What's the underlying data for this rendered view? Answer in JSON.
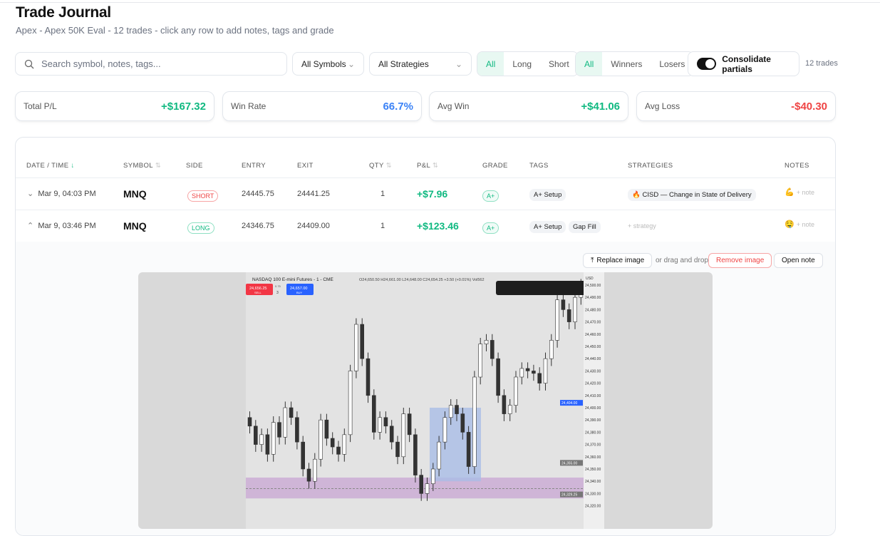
{
  "header": {
    "title": "Trade Journal",
    "subtitle": "Apex - Apex 50K Eval - 12 trades - click any row to add notes, tags and grade"
  },
  "filters": {
    "search_placeholder": "Search symbol, notes, tags...",
    "symbols": "All Symbols",
    "strategies": "All Strategies",
    "side": [
      "All",
      "Long",
      "Short"
    ],
    "side_selected": "All",
    "result": [
      "All",
      "Winners",
      "Losers"
    ],
    "result_selected": "All",
    "consolidate_label": "Consolidate partials",
    "consolidate_on": true,
    "count": "12 trades"
  },
  "stats": [
    {
      "label": "Total P/L",
      "value": "+$167.32",
      "color": "#10b981"
    },
    {
      "label": "Win Rate",
      "value": "66.7%",
      "color": "#3b82f6"
    },
    {
      "label": "Avg Win",
      "value": "+$41.06",
      "color": "#10b981"
    },
    {
      "label": "Avg Loss",
      "value": "-$40.30",
      "color": "#ef4444"
    }
  ],
  "table": {
    "columns": [
      "DATE / TIME",
      "SYMBOL",
      "SIDE",
      "ENTRY",
      "EXIT",
      "QTY",
      "P&L",
      "GRADE",
      "TAGS",
      "STRATEGIES",
      "NOTES"
    ],
    "rows": [
      {
        "date": "Mar 9, 04:03 PM",
        "symbol": "MNQ",
        "side": "SHORT",
        "entry": "24445.75",
        "exit": "24441.25",
        "qty": "1",
        "pl": "+$7.96",
        "grade": "A+",
        "tags": [
          "A+ Setup"
        ],
        "strategy": "CISD — Change in State of Delivery",
        "note_emoji": "💪",
        "note": "+ note",
        "expanded": false
      },
      {
        "date": "Mar 9, 03:46 PM",
        "symbol": "MNQ",
        "side": "LONG",
        "entry": "24346.75",
        "exit": "24409.00",
        "qty": "1",
        "pl": "+$123.46",
        "grade": "A+",
        "tags": [
          "A+ Setup",
          "Gap Fill"
        ],
        "strategy": "+ strategy",
        "note_emoji": "🤤",
        "note": "+ note",
        "expanded": true
      }
    ]
  },
  "expanded": {
    "replace": "Replace image",
    "drag": "or drag and drop",
    "remove": "Remove image",
    "open": "Open note"
  },
  "chart": {
    "title": "NASDAQ 100 E-mini Futures - 1 - CME",
    "ohlc": "O24,650.50 H24,661.00 L24,648.00 C24,654.25 +3.50 (+0.01%) Vol562",
    "sell": "24,656.25",
    "sell_label": "SELL",
    "spread": "0.75",
    "qty": "3",
    "buy": "24,657.00",
    "buy_label": "BUY",
    "currency": "USD",
    "price_ticks": [
      "24,500.00",
      "24,490.00",
      "24,480.00",
      "24,470.00",
      "24,460.00",
      "24,450.00",
      "24,440.00",
      "24,430.00",
      "24,420.00",
      "24,410.00",
      "24,400.00",
      "24,390.00",
      "24,380.00",
      "24,370.00",
      "24,360.00",
      "24,350.00",
      "24,340.00",
      "24,330.00",
      "24,320.00"
    ],
    "current_price": "24,404.00",
    "marker1": "24,355.00",
    "marker2": "24,329.25"
  }
}
